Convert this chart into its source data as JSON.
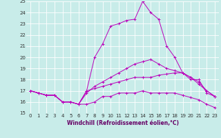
{
  "title": "",
  "xlabel": "Windchill (Refroidissement éolien,°C)",
  "ylabel": "",
  "xlim": [
    -0.5,
    23.5
  ],
  "ylim": [
    15,
    25
  ],
  "yticks": [
    15,
    16,
    17,
    18,
    19,
    20,
    21,
    22,
    23,
    24,
    25
  ],
  "xticks": [
    0,
    1,
    2,
    3,
    4,
    5,
    6,
    7,
    8,
    9,
    10,
    11,
    12,
    13,
    14,
    15,
    16,
    17,
    18,
    19,
    20,
    21,
    22,
    23
  ],
  "bg_color": "#c8ece9",
  "line_color": "#bb00bb",
  "grid_color": "#ffffff",
  "series": [
    [
      17.0,
      16.8,
      16.6,
      16.6,
      16.0,
      16.0,
      15.8,
      15.8,
      16.0,
      16.5,
      16.5,
      16.8,
      16.8,
      16.8,
      17.0,
      16.8,
      16.8,
      16.8,
      16.8,
      16.6,
      16.4,
      16.2,
      15.8,
      15.5
    ],
    [
      17.0,
      16.8,
      16.6,
      16.6,
      16.0,
      16.0,
      15.8,
      17.0,
      17.2,
      17.4,
      17.6,
      17.8,
      18.0,
      18.2,
      18.2,
      18.2,
      18.4,
      18.5,
      18.6,
      18.6,
      18.2,
      17.6,
      17.0,
      16.5
    ],
    [
      17.0,
      16.8,
      16.6,
      16.6,
      16.0,
      16.0,
      15.8,
      16.8,
      17.4,
      17.8,
      18.2,
      18.6,
      19.0,
      19.4,
      19.6,
      19.8,
      19.4,
      19.0,
      18.8,
      18.6,
      18.2,
      17.8,
      17.0,
      16.5
    ],
    [
      17.0,
      16.8,
      16.6,
      16.6,
      16.0,
      16.0,
      15.8,
      17.0,
      20.0,
      21.2,
      22.8,
      23.0,
      23.3,
      23.4,
      25.0,
      24.0,
      23.4,
      21.0,
      20.0,
      18.6,
      18.0,
      18.0,
      16.8,
      16.5
    ]
  ],
  "tick_fontsize": 5.0,
  "xlabel_fontsize": 5.5,
  "xlabel_color": "#660066",
  "line_width": 0.7,
  "marker_size": 2.5
}
